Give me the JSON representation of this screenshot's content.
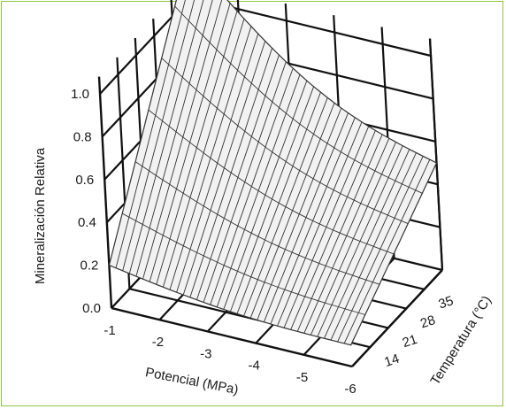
{
  "chart_data": {
    "type": "surface",
    "title": "",
    "xlabel": "Potencial (MPa)",
    "ylabel": "Temperatura (°C)",
    "zlabel": "Mineralización Relativa",
    "x_ticks": [
      "-1",
      "-2",
      "-3",
      "-4",
      "-5",
      "-6"
    ],
    "y_ticks": [
      "14",
      "21",
      "28",
      "35"
    ],
    "z_ticks": [
      "0.0",
      "0.2",
      "0.4",
      "0.6",
      "0.8",
      "1.0"
    ],
    "x_range": [
      -1,
      -6
    ],
    "y_range": [
      7,
      42
    ],
    "z_range": [
      0,
      1.0
    ],
    "grid": true,
    "surface_corners": [
      {
        "potential": -1,
        "temperature": 7,
        "value": 0.2
      },
      {
        "potential": -1,
        "temperature": 42,
        "value": 1.2
      },
      {
        "potential": -6,
        "temperature": 42,
        "value": 0.5
      },
      {
        "potential": -6,
        "temperature": 7,
        "value": 0.1
      }
    ],
    "colors": {
      "surface": "#f2f2f2",
      "mesh": "#333333",
      "grid": "#111111",
      "frame": "#8dc63f"
    }
  }
}
